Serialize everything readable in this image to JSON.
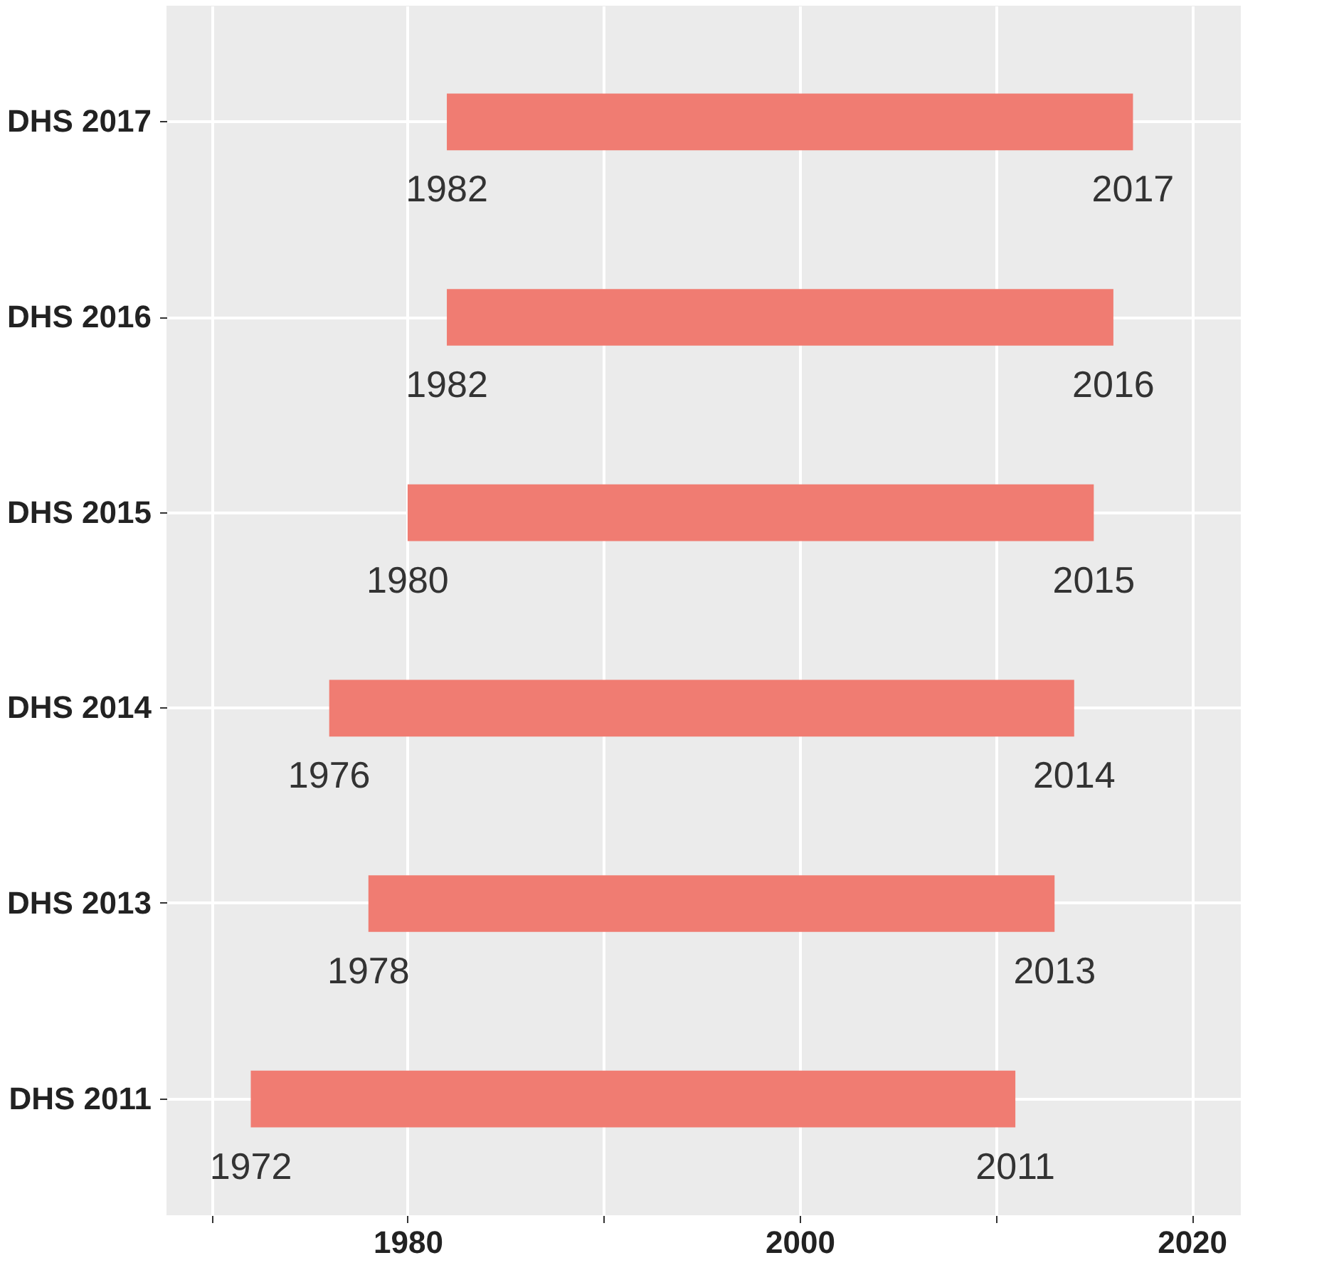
{
  "chart_data": {
    "type": "bar",
    "orientation": "horizontal",
    "categories": [
      "DHS 2017",
      "DHS 2016",
      "DHS 2015",
      "DHS 2014",
      "DHS 2013",
      "DHS 2011"
    ],
    "base": [
      1982,
      1982,
      1980,
      1976,
      1978,
      1972
    ],
    "values": [
      35,
      34,
      35,
      38,
      35,
      39
    ],
    "color": "#f07c72",
    "xlim": [
      1967.7,
      2022.5
    ],
    "xticks": [
      {
        "value": 1970,
        "label": null
      },
      1980,
      {
        "value": 1990,
        "label": null
      },
      2000,
      {
        "value": 2010,
        "label": null
      },
      2020
    ],
    "grid": true,
    "annotations": [
      {
        "text": "1982",
        "x": 1982,
        "y": "DHS 2017"
      },
      {
        "text": "2017",
        "x": 2017,
        "y": "DHS 2017"
      },
      {
        "text": "1982",
        "x": 1982,
        "y": "DHS 2016"
      },
      {
        "text": "2016",
        "x": 2016,
        "y": "DHS 2016"
      },
      {
        "text": "1980",
        "x": 1980,
        "y": "DHS 2015"
      },
      {
        "text": "2015",
        "x": 2015,
        "y": "DHS 2015"
      },
      {
        "text": "1976",
        "x": 1976,
        "y": "DHS 2014"
      },
      {
        "text": "2014",
        "x": 2014,
        "y": "DHS 2014"
      },
      {
        "text": "1978",
        "x": 1978,
        "y": "DHS 2013"
      },
      {
        "text": "2013",
        "x": 2013,
        "y": "DHS 2013"
      },
      {
        "text": "1972",
        "x": 1972,
        "y": "DHS 2011"
      },
      {
        "text": "2011",
        "x": 2011,
        "y": "DHS 2011"
      }
    ]
  }
}
